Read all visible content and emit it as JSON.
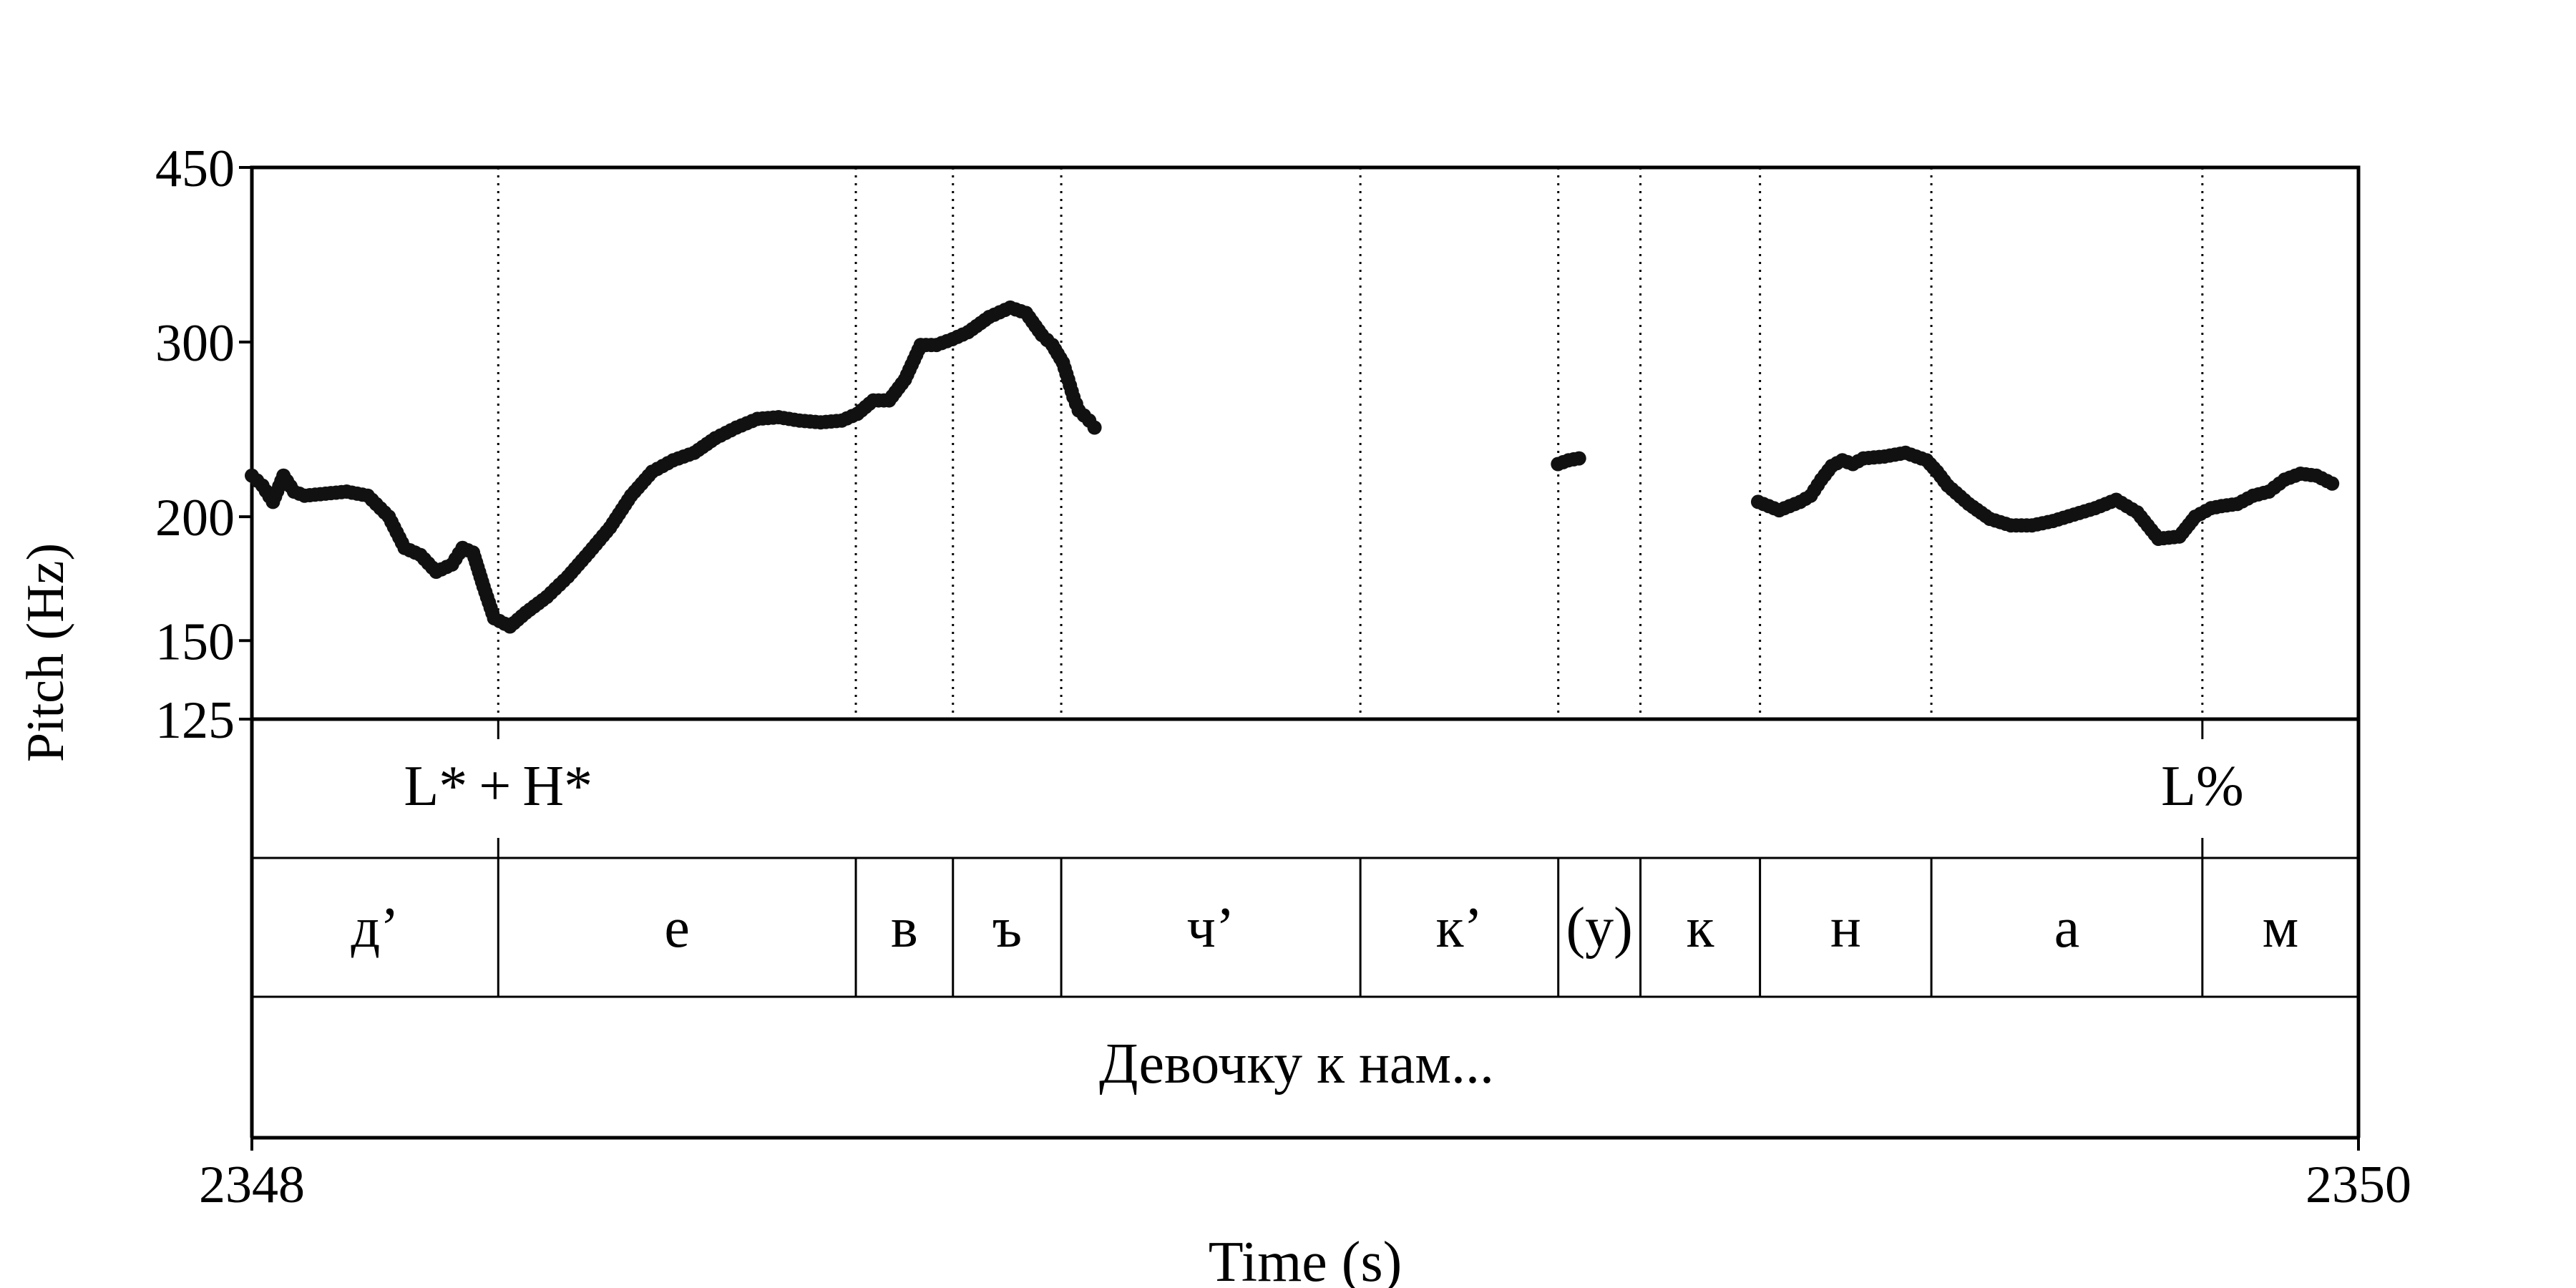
{
  "chart_data": {
    "type": "scatter",
    "title": "",
    "xlabel": "Time (s)",
    "ylabel": "Pitch (Hz)",
    "xlim": [
      2348,
      2350
    ],
    "ylim": [
      125,
      450
    ],
    "y_scale": "log",
    "x_ticks": [
      "2348",
      "2350"
    ],
    "y_ticks": [
      {
        "value": 450,
        "label": "450"
      },
      {
        "value": 300,
        "label": "300"
      },
      {
        "value": 200,
        "label": "200"
      },
      {
        "value": 150,
        "label": "150"
      },
      {
        "value": 125,
        "label": "125"
      }
    ],
    "boundaries": [
      2348.2339,
      2348.5734,
      2348.6656,
      2348.7684,
      2349.0524,
      2349.2403,
      2349.3183,
      2349.4318,
      2349.5945,
      2349.8518
    ],
    "tones": [
      {
        "time": 2348.2339,
        "label": "L* + H*"
      },
      {
        "time": 2349.8518,
        "label": "L%"
      }
    ],
    "segments": [
      {
        "start": 2348.0,
        "end": 2348.2339,
        "label": "д’"
      },
      {
        "start": 2348.2339,
        "end": 2348.5734,
        "label": "е"
      },
      {
        "start": 2348.5734,
        "end": 2348.6656,
        "label": "в"
      },
      {
        "start": 2348.6656,
        "end": 2348.7684,
        "label": "ъ"
      },
      {
        "start": 2348.7684,
        "end": 2349.0524,
        "label": "ч’"
      },
      {
        "start": 2349.0524,
        "end": 2349.2403,
        "label": "к’"
      },
      {
        "start": 2349.2403,
        "end": 2349.3183,
        "label": "(у)"
      },
      {
        "start": 2349.3183,
        "end": 2349.4318,
        "label": "к"
      },
      {
        "start": 2349.4318,
        "end": 2349.5945,
        "label": "н"
      },
      {
        "start": 2349.5945,
        "end": 2349.8518,
        "label": "а"
      },
      {
        "start": 2349.8518,
        "end": 2350.0,
        "label": "м"
      }
    ],
    "phrase": "Девочку к нам...",
    "pitch_contours": [
      {
        "x": [
          2348.0,
          2348.01,
          2348.02,
          2348.03,
          2348.04,
          2348.05,
          2348.07,
          2348.09,
          2348.11,
          2348.13,
          2348.145,
          2348.16,
          2348.175,
          2348.19,
          2348.2,
          2348.21,
          2348.22,
          2348.23,
          2348.245,
          2348.26,
          2348.28,
          2348.3,
          2348.32,
          2348.34,
          2348.36,
          2348.38,
          2348.4,
          2348.42,
          2348.44,
          2348.46,
          2348.48,
          2348.5,
          2348.52,
          2348.54,
          2348.56,
          2348.575,
          2348.59,
          2348.605,
          2348.62,
          2348.635,
          2348.65,
          2348.665,
          2348.68,
          2348.7,
          2348.72,
          2348.735,
          2348.75,
          2348.76,
          2348.77,
          2348.775,
          2348.78,
          2348.785,
          2348.79,
          2348.795,
          2348.8
        ],
        "y": [
          220,
          215,
          207,
          220,
          212,
          210,
          211,
          212,
          210,
          200,
          186,
          183,
          176,
          179,
          186,
          184,
          170,
          158,
          155,
          160,
          166,
          174,
          184,
          195,
          210,
          222,
          228,
          232,
          240,
          246,
          251,
          252,
          250,
          249,
          250,
          254,
          262,
          262,
          275,
          298,
          298,
          302,
          307,
          318,
          325,
          321,
          305,
          298,
          286,
          275,
          264,
          256,
          253,
          250,
          246
        ]
      },
      {
        "x": [
          2349.24,
          2349.25,
          2349.26
        ],
        "y": [
          226,
          228,
          229
        ]
      },
      {
        "x": [
          2349.43,
          2349.44,
          2349.45,
          2349.46,
          2349.47,
          2349.48,
          2349.49,
          2349.5,
          2349.51,
          2349.52,
          2349.53,
          2349.55,
          2349.57,
          2349.59,
          2349.6,
          2349.61,
          2349.63,
          2349.65,
          2349.67,
          2349.69,
          2349.71,
          2349.73,
          2349.75,
          2349.77,
          2349.79,
          2349.81,
          2349.83,
          2349.845,
          2349.86,
          2349.87,
          2349.885,
          2349.9,
          2349.915,
          2349.93,
          2349.945,
          2349.96,
          2349.975
        ],
        "y": [
          207,
          205,
          203,
          205,
          207,
          210,
          218,
          225,
          228,
          226,
          229,
          230,
          232,
          228,
          222,
          215,
          206,
          199,
          196,
          196,
          198,
          201,
          204,
          208,
          202,
          190,
          191,
          200,
          204,
          205,
          206,
          210,
          212,
          218,
          221,
          220,
          216
        ]
      }
    ]
  }
}
